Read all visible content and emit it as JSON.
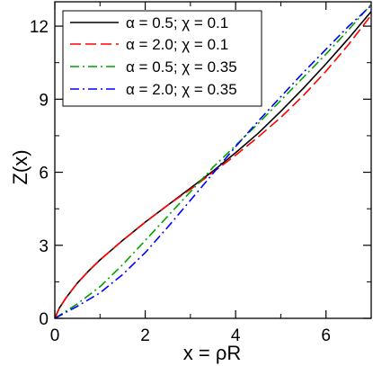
{
  "chart_data": {
    "type": "line",
    "title": "",
    "xlabel": "x = ρR",
    "ylabel": "Z(x)",
    "xlim": [
      0,
      7
    ],
    "ylim": [
      0,
      13
    ],
    "xticks": [
      0,
      2,
      4,
      6
    ],
    "yticks": [
      0,
      3,
      6,
      9,
      12
    ],
    "grid": false,
    "legend_position": "top-left",
    "series": [
      {
        "name": "α = 0.5; χ = 0.1",
        "color": "#000000",
        "dash": "solid",
        "x": [
          0,
          0.1,
          0.25,
          0.5,
          0.75,
          1.0,
          1.5,
          2.0,
          2.5,
          3.0,
          3.5,
          4.0,
          4.5,
          5.0,
          5.5,
          6.0,
          6.5,
          7.0
        ],
        "y": [
          0,
          0.42,
          0.85,
          1.45,
          1.95,
          2.4,
          3.2,
          3.95,
          4.65,
          5.35,
          6.05,
          6.8,
          7.6,
          8.5,
          9.45,
          10.45,
          11.5,
          12.6
        ]
      },
      {
        "name": "α = 2.0; χ = 0.1",
        "color": "#ff0000",
        "dash": "dashed",
        "x": [
          0,
          0.1,
          0.25,
          0.5,
          0.75,
          1.0,
          1.5,
          2.0,
          2.5,
          3.0,
          3.5,
          4.0,
          4.5,
          5.0,
          5.5,
          6.0,
          6.5,
          7.0
        ],
        "y": [
          0,
          0.42,
          0.85,
          1.45,
          1.95,
          2.4,
          3.2,
          3.95,
          4.65,
          5.3,
          6.0,
          6.7,
          7.45,
          8.25,
          9.15,
          10.15,
          11.25,
          12.45
        ]
      },
      {
        "name": "α = 0.5; χ = 0.35",
        "color": "#00a000",
        "dash": "dashdot",
        "x": [
          0,
          0.25,
          0.5,
          1.0,
          1.5,
          2.0,
          2.5,
          3.0,
          3.5,
          4.0,
          4.5,
          5.0,
          5.5,
          6.0,
          6.5,
          7.0
        ],
        "y": [
          0,
          0.3,
          0.6,
          1.3,
          2.2,
          3.2,
          4.2,
          5.2,
          6.2,
          7.1,
          8.0,
          8.95,
          9.9,
          10.85,
          11.85,
          12.9
        ]
      },
      {
        "name": "α = 2.0; χ = 0.35",
        "color": "#0000ff",
        "dash": "dashdot",
        "x": [
          0,
          0.25,
          0.5,
          1.0,
          1.5,
          2.0,
          2.5,
          3.0,
          3.5,
          4.0,
          4.5,
          5.0,
          5.5,
          6.0,
          6.5,
          7.0
        ],
        "y": [
          0,
          0.25,
          0.5,
          1.05,
          1.8,
          2.7,
          3.75,
          4.85,
          5.95,
          7.05,
          8.1,
          9.1,
          10.1,
          11.05,
          12.0,
          12.85
        ]
      }
    ]
  }
}
